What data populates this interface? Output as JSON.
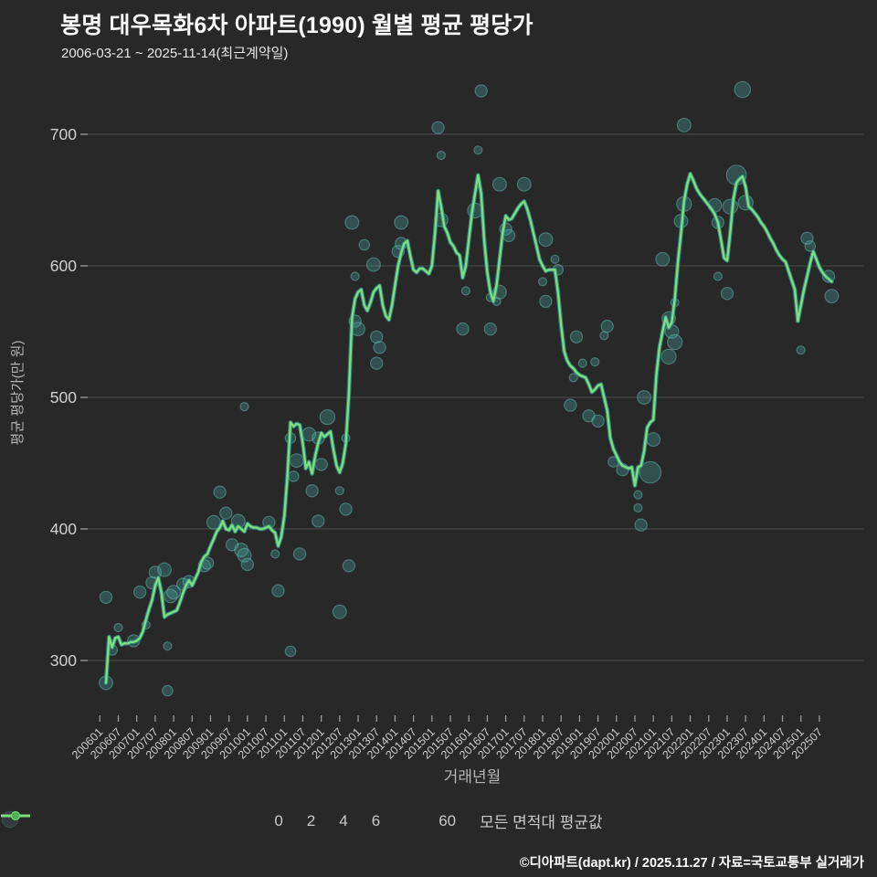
{
  "title": "봉명 대우목화6차 아파트(1990) 월별 평균 평당가",
  "subtitle": "2006-03-21 ~ 2025-11-14(최근계약일)",
  "footer": "©디아파트(dapt.kr) / 2025.11.27 / 자료=국토교통부 실거래가",
  "legend": {
    "sizes": [
      {
        "label": "0",
        "radius": 2
      },
      {
        "label": "2",
        "radius": 5.7
      },
      {
        "label": "4",
        "radius": 7.3
      },
      {
        "label": "6",
        "radius": 8.7
      }
    ],
    "lines": [
      {
        "label": "60",
        "color": "#2f9287",
        "dot": "#23756c"
      },
      {
        "label": "모든 면적대 평균값",
        "color": "#7fdc7f",
        "dot": "#4fae4f"
      }
    ]
  },
  "chart_data": {
    "type": "scatter+line",
    "title": "봉명 대우목화6차 아파트(1990) 월별 평균 평당가",
    "xlabel": "거래년월",
    "ylabel": "평균 평당가(만 원)",
    "grid": true,
    "legend_position": "bottom",
    "ylim": [
      260,
      760
    ],
    "yticks": [
      700,
      600,
      500,
      400,
      300
    ],
    "xticks": [
      "200601",
      "200607",
      "200701",
      "200707",
      "200801",
      "200807",
      "200901",
      "200907",
      "201001",
      "201007",
      "201101",
      "201107",
      "201201",
      "201207",
      "201301",
      "201307",
      "201401",
      "201407",
      "201501",
      "201507",
      "201601",
      "201607",
      "201701",
      "201707",
      "201801",
      "201807",
      "201901",
      "201907",
      "202001",
      "202007",
      "202101",
      "202107",
      "202201",
      "202207",
      "202301",
      "202307",
      "202401",
      "202407",
      "202501",
      "202507"
    ],
    "series_colors": {
      "avg_line": "#7fdc7f",
      "line60": "#2f9287",
      "bubble": "#3fa89f"
    },
    "line": {
      "name": "모든 면적대 평균값",
      "start_month": "200603",
      "monthly_values": [
        283,
        318,
        310,
        317,
        318,
        312,
        313,
        313,
        314,
        314,
        315,
        317,
        322,
        331,
        339,
        346,
        357,
        363,
        352,
        333,
        335,
        336,
        337,
        338,
        344,
        351,
        357,
        361,
        357,
        362,
        367,
        375,
        379,
        381,
        387,
        392,
        398,
        401,
        406,
        400,
        399,
        403,
        398,
        402,
        400,
        398,
        404,
        402,
        401,
        401,
        400,
        400,
        401,
        402,
        399,
        397,
        387,
        394,
        410,
        440,
        481,
        478,
        480,
        479,
        465,
        446,
        451,
        442,
        455,
        465,
        473,
        470,
        472,
        474,
        460,
        448,
        443,
        450,
        465,
        503,
        560,
        575,
        580,
        582,
        570,
        566,
        572,
        580,
        583,
        585,
        570,
        562,
        559,
        570,
        585,
        600,
        610,
        617,
        619,
        607,
        597,
        595,
        598,
        598,
        596,
        594,
        600,
        625,
        657,
        645,
        630,
        625,
        618,
        615,
        610,
        608,
        591,
        600,
        620,
        640,
        655,
        669,
        655,
        620,
        595,
        580,
        573,
        585,
        605,
        625,
        638,
        635,
        636,
        640,
        644,
        647,
        649,
        643,
        635,
        625,
        615,
        605,
        600,
        596,
        597,
        597,
        597,
        580,
        555,
        535,
        528,
        524,
        522,
        519,
        517,
        516,
        515,
        510,
        504,
        506,
        509,
        510,
        500,
        490,
        469,
        461,
        456,
        451,
        448,
        447,
        446,
        447,
        433,
        447,
        448,
        459,
        477,
        481,
        483,
        517,
        538,
        550,
        561,
        553,
        557,
        575,
        603,
        625,
        649,
        662,
        670,
        665,
        659,
        655,
        652,
        649,
        646,
        643,
        639,
        633,
        620,
        606,
        604,
        625,
        650,
        663,
        666,
        668,
        660,
        645,
        643,
        640,
        637,
        633,
        630,
        626,
        621,
        617,
        612,
        608,
        605,
        603,
        596,
        589,
        582,
        558,
        570,
        582,
        592,
        602,
        611,
        605,
        599,
        595,
        592,
        590,
        588
      ]
    },
    "line60": {
      "name": "60",
      "note": "60㎡ 면적대 선 — 평균선과 거의 겹침"
    },
    "bubbles": [
      [
        200603,
        283,
        4
      ],
      [
        200603,
        348,
        3
      ],
      [
        200605,
        308,
        2
      ],
      [
        200607,
        325,
        1
      ],
      [
        200612,
        315,
        3
      ],
      [
        200702,
        352,
        3
      ],
      [
        200704,
        327,
        1
      ],
      [
        200706,
        359,
        3
      ],
      [
        200707,
        367,
        3
      ],
      [
        200710,
        369,
        4
      ],
      [
        200711,
        277,
        2
      ],
      [
        200711,
        311,
        1
      ],
      [
        200712,
        349,
        4
      ],
      [
        200801,
        352,
        4
      ],
      [
        200804,
        358,
        3
      ],
      [
        200806,
        360,
        3
      ],
      [
        200811,
        372,
        3
      ],
      [
        200812,
        374,
        3
      ],
      [
        200902,
        405,
        4
      ],
      [
        200904,
        428,
        3
      ],
      [
        200906,
        412,
        3
      ],
      [
        200908,
        388,
        3
      ],
      [
        200910,
        406,
        4
      ],
      [
        200911,
        384,
        4
      ],
      [
        200912,
        380,
        4
      ],
      [
        200912,
        493,
        1
      ],
      [
        201001,
        373,
        3
      ],
      [
        201008,
        405,
        3
      ],
      [
        201010,
        381,
        1
      ],
      [
        201011,
        353,
        3
      ],
      [
        201103,
        307,
        2
      ],
      [
        201103,
        469,
        2
      ],
      [
        201104,
        440,
        2
      ],
      [
        201105,
        452,
        4
      ],
      [
        201106,
        381,
        3
      ],
      [
        201109,
        472,
        4
      ],
      [
        201110,
        429,
        3
      ],
      [
        201112,
        406,
        3
      ],
      [
        201112,
        469,
        3
      ],
      [
        201201,
        449,
        3
      ],
      [
        201203,
        485,
        5
      ],
      [
        201207,
        337,
        4
      ],
      [
        201207,
        429,
        1
      ],
      [
        201209,
        415,
        3
      ],
      [
        201209,
        469,
        1
      ],
      [
        201210,
        372,
        3
      ],
      [
        201211,
        633,
        4
      ],
      [
        201212,
        592,
        1
      ],
      [
        201212,
        558,
        3
      ],
      [
        201301,
        552,
        4
      ],
      [
        201303,
        616,
        2
      ],
      [
        201306,
        601,
        4
      ],
      [
        201307,
        546,
        3
      ],
      [
        201307,
        526,
        3
      ],
      [
        201308,
        538,
        3
      ],
      [
        201402,
        611,
        3
      ],
      [
        201403,
        633,
        4
      ],
      [
        201403,
        617,
        3
      ],
      [
        201503,
        705,
        3
      ],
      [
        201504,
        635,
        4
      ],
      [
        201504,
        684,
        1
      ],
      [
        201511,
        552,
        3
      ],
      [
        201512,
        581,
        1
      ],
      [
        201603,
        642,
        5
      ],
      [
        201604,
        688,
        1
      ],
      [
        201605,
        733,
        3
      ],
      [
        201608,
        552,
        3
      ],
      [
        201608,
        576,
        1
      ],
      [
        201610,
        573,
        1
      ],
      [
        201611,
        580,
        4
      ],
      [
        201611,
        662,
        4
      ],
      [
        201701,
        628,
        3
      ],
      [
        201702,
        623,
        3
      ],
      [
        201707,
        662,
        4
      ],
      [
        201801,
        588,
        1
      ],
      [
        201802,
        573,
        3
      ],
      [
        201802,
        620,
        4
      ],
      [
        201805,
        605,
        1
      ],
      [
        201806,
        597,
        2
      ],
      [
        201810,
        494,
        3
      ],
      [
        201811,
        515,
        1
      ],
      [
        201812,
        546,
        3
      ],
      [
        201902,
        526,
        1
      ],
      [
        201904,
        486,
        3
      ],
      [
        201906,
        527,
        1
      ],
      [
        201907,
        482,
        3
      ],
      [
        201909,
        547,
        1
      ],
      [
        201910,
        554,
        3
      ],
      [
        201912,
        451,
        2
      ],
      [
        202003,
        445,
        3
      ],
      [
        202008,
        426,
        1
      ],
      [
        202008,
        416,
        1
      ],
      [
        202009,
        403,
        3
      ],
      [
        202010,
        500,
        4
      ],
      [
        202012,
        443,
        12
      ],
      [
        202101,
        468,
        4
      ],
      [
        202104,
        605,
        4
      ],
      [
        202106,
        560,
        4
      ],
      [
        202106,
        531,
        5
      ],
      [
        202107,
        550,
        4
      ],
      [
        202108,
        542,
        5
      ],
      [
        202108,
        572,
        1
      ],
      [
        202110,
        634,
        4
      ],
      [
        202111,
        647,
        5
      ],
      [
        202111,
        707,
        4
      ],
      [
        202209,
        646,
        4
      ],
      [
        202210,
        633,
        3
      ],
      [
        202210,
        592,
        1
      ],
      [
        202301,
        579,
        3
      ],
      [
        202302,
        645,
        5
      ],
      [
        202304,
        669,
        10
      ],
      [
        202306,
        734,
        6
      ],
      [
        202307,
        648,
        5
      ],
      [
        202501,
        536,
        1
      ],
      [
        202503,
        621,
        3
      ],
      [
        202504,
        615,
        2
      ],
      [
        202510,
        592,
        3
      ],
      [
        202511,
        577,
        4
      ]
    ]
  }
}
